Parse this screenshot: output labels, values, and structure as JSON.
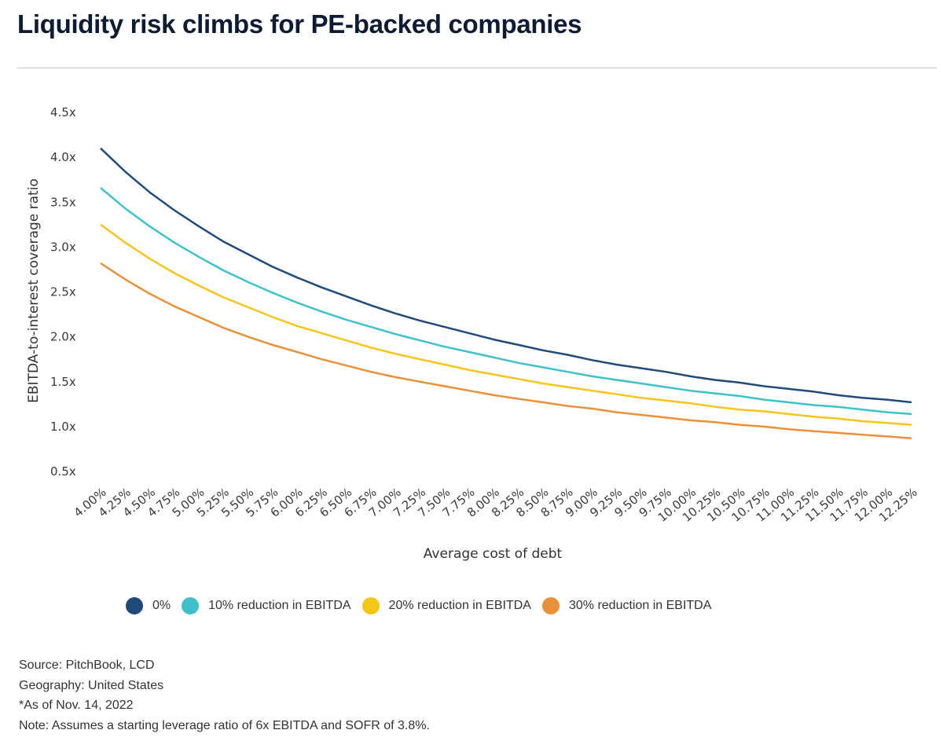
{
  "header": {
    "title": "Liquidity risk climbs for PE-backed companies"
  },
  "chart_data": {
    "type": "line",
    "title": "Liquidity risk climbs for PE-backed companies",
    "xlabel": "Average cost of debt",
    "ylabel": "EBITDA-to-interest coverage ratio",
    "ylim": [
      0.5,
      4.5
    ],
    "yticks": [
      "4.5x",
      "4.0x",
      "3.5x",
      "3.0x",
      "2.5x",
      "2.0x",
      "1.5x",
      "1.0x",
      "0.5x"
    ],
    "ytick_values": [
      4.5,
      4.0,
      3.5,
      3.0,
      2.5,
      2.0,
      1.5,
      1.0,
      0.5
    ],
    "grid": false,
    "legend_position": "bottom",
    "categories": [
      "4.00%",
      "4.25%",
      "4.50%",
      "4.75%",
      "5.00%",
      "5.25%",
      "5.50%",
      "5.75%",
      "6.00%",
      "6.25%",
      "6.50%",
      "6.75%",
      "7.00%",
      "7.25%",
      "7.50%",
      "7.75%",
      "8.00%",
      "8.25%",
      "8.50%",
      "8.75%",
      "9.00%",
      "9.25%",
      "9.50%",
      "9.75%",
      "10.00%",
      "10.25%",
      "10.50%",
      "10.75%",
      "11.00%",
      "11.25%",
      "11.50%",
      "11.75%",
      "12.00%",
      "12.25%"
    ],
    "series": [
      {
        "name": "0%",
        "color": "#1f4a7a",
        "values": [
          4.1,
          3.84,
          3.61,
          3.41,
          3.23,
          3.06,
          2.92,
          2.78,
          2.66,
          2.55,
          2.45,
          2.35,
          2.26,
          2.18,
          2.11,
          2.04,
          1.97,
          1.91,
          1.85,
          1.8,
          1.74,
          1.69,
          1.65,
          1.61,
          1.56,
          1.52,
          1.49,
          1.45,
          1.42,
          1.39,
          1.35,
          1.32,
          1.3,
          1.27
        ]
      },
      {
        "name": "10% reduction in EBITDA",
        "color": "#3fc1c9",
        "values": [
          3.66,
          3.43,
          3.23,
          3.05,
          2.89,
          2.74,
          2.61,
          2.49,
          2.38,
          2.28,
          2.19,
          2.11,
          2.03,
          1.96,
          1.89,
          1.83,
          1.77,
          1.71,
          1.66,
          1.61,
          1.56,
          1.52,
          1.48,
          1.44,
          1.4,
          1.37,
          1.34,
          1.3,
          1.27,
          1.24,
          1.22,
          1.19,
          1.16,
          1.14
        ]
      },
      {
        "name": "20% reduction in EBITDA",
        "color": "#f5c518",
        "values": [
          3.25,
          3.05,
          2.87,
          2.71,
          2.57,
          2.44,
          2.33,
          2.22,
          2.12,
          2.04,
          1.96,
          1.88,
          1.81,
          1.75,
          1.69,
          1.63,
          1.58,
          1.53,
          1.48,
          1.44,
          1.4,
          1.36,
          1.32,
          1.29,
          1.26,
          1.22,
          1.19,
          1.17,
          1.14,
          1.11,
          1.09,
          1.06,
          1.04,
          1.02
        ]
      },
      {
        "name": "30% reduction in EBITDA",
        "color": "#e8913a",
        "values": [
          2.82,
          2.64,
          2.48,
          2.34,
          2.22,
          2.1,
          2.0,
          1.91,
          1.83,
          1.75,
          1.68,
          1.61,
          1.55,
          1.5,
          1.45,
          1.4,
          1.35,
          1.31,
          1.27,
          1.23,
          1.2,
          1.16,
          1.13,
          1.1,
          1.07,
          1.05,
          1.02,
          1.0,
          0.97,
          0.95,
          0.93,
          0.91,
          0.89,
          0.87
        ]
      }
    ]
  },
  "legend": {
    "items": [
      {
        "label": "0%",
        "color": "#1f4a7a"
      },
      {
        "label": "10% reduction in EBITDA",
        "color": "#3fc1c9"
      },
      {
        "label": "20% reduction in EBITDA",
        "color": "#f5c518"
      },
      {
        "label": "30% reduction in EBITDA",
        "color": "#e8913a"
      }
    ]
  },
  "notes": {
    "source": "Source: PitchBook, LCD",
    "geography": "Geography: United States",
    "as_of": "*As of Nov. 14, 2022",
    "note": "Note: Assumes a starting leverage ratio of 6x EBITDA and SOFR of 3.8%."
  }
}
